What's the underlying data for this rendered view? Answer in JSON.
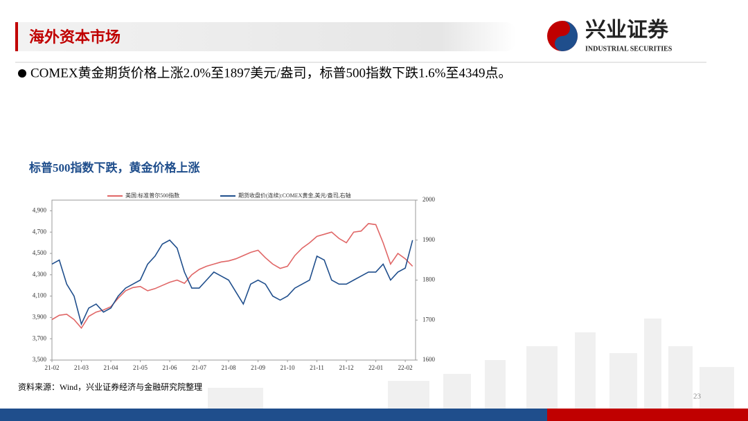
{
  "header": {
    "title": "海外资本市场",
    "logo_cn": "兴业证券",
    "logo_en": "INDUSTRIAL SECURITIES"
  },
  "bullet": "COMEX黄金期货价格上涨2.0%至1897美元/盎司，标普500指数下跌1.6%至4349点。",
  "source": "资料来源：Wind，兴业证券经济与金融研究院整理",
  "page_number": "23",
  "chart_data": {
    "type": "line",
    "title": "标普500指数下跌，黄金价格上涨",
    "x": [
      0,
      0.25,
      0.5,
      0.75,
      1,
      1.25,
      1.5,
      1.75,
      2,
      2.25,
      2.5,
      2.75,
      3,
      3.25,
      3.5,
      3.75,
      4,
      4.25,
      4.5,
      4.75,
      5,
      5.25,
      5.5,
      5.75,
      6,
      6.25,
      6.5,
      6.75,
      7,
      7.25,
      7.5,
      7.75,
      8,
      8.25,
      8.5,
      8.75,
      9,
      9.25,
      9.5,
      9.75,
      10,
      10.25,
      10.5,
      10.75,
      11,
      11.25,
      11.5,
      11.75,
      12,
      12.25
    ],
    "series": [
      {
        "name": "美国:标准普尔500指数",
        "color": "#e06666",
        "axis": "y",
        "values": [
          3880,
          3920,
          3930,
          3880,
          3800,
          3910,
          3950,
          3970,
          4000,
          4080,
          4150,
          4180,
          4190,
          4150,
          4170,
          4200,
          4230,
          4250,
          4220,
          4300,
          4350,
          4380,
          4400,
          4420,
          4430,
          4450,
          4480,
          4510,
          4530,
          4460,
          4400,
          4360,
          4380,
          4480,
          4550,
          4600,
          4660,
          4680,
          4700,
          4640,
          4600,
          4700,
          4710,
          4780,
          4770,
          4600,
          4400,
          4500,
          4450,
          4380
        ]
      },
      {
        "name": "期货收盘价(连续):COMEX黄金,美元/盎司,右轴",
        "color": "#1f4e8c",
        "axis": "y2",
        "values": [
          1840,
          1850,
          1790,
          1760,
          1690,
          1730,
          1740,
          1720,
          1730,
          1760,
          1780,
          1790,
          1800,
          1840,
          1860,
          1890,
          1900,
          1880,
          1820,
          1780,
          1780,
          1800,
          1820,
          1810,
          1800,
          1770,
          1740,
          1790,
          1800,
          1790,
          1760,
          1750,
          1760,
          1780,
          1790,
          1800,
          1860,
          1850,
          1800,
          1790,
          1790,
          1800,
          1810,
          1820,
          1820,
          1840,
          1800,
          1820,
          1830,
          1900
        ]
      }
    ],
    "xlim": [
      0,
      12.35
    ],
    "xticks": [
      {
        "value": 0,
        "label": "21-02"
      },
      {
        "value": 1,
        "label": "21-03"
      },
      {
        "value": 2,
        "label": "21-04"
      },
      {
        "value": 3,
        "label": "21-05"
      },
      {
        "value": 4,
        "label": "21-06"
      },
      {
        "value": 5,
        "label": "21-07"
      },
      {
        "value": 6,
        "label": "21-08"
      },
      {
        "value": 7,
        "label": "21-09"
      },
      {
        "value": 8,
        "label": "21-10"
      },
      {
        "value": 9,
        "label": "21-11"
      },
      {
        "value": 10,
        "label": "21-12"
      },
      {
        "value": 11,
        "label": "22-01"
      },
      {
        "value": 12,
        "label": "22-02"
      }
    ],
    "ylim": [
      3500,
      5000
    ],
    "yticks": [
      {
        "value": 3500,
        "label": "3,500"
      },
      {
        "value": 3700,
        "label": "3,700"
      },
      {
        "value": 3900,
        "label": "3,900"
      },
      {
        "value": 4100,
        "label": "4,100"
      },
      {
        "value": 4300,
        "label": "4,300"
      },
      {
        "value": 4500,
        "label": "4,500"
      },
      {
        "value": 4700,
        "label": "4,700"
      },
      {
        "value": 4900,
        "label": "4,900"
      }
    ],
    "y2lim": [
      1600,
      2000
    ],
    "y2ticks": [
      1600,
      1700,
      1800,
      1900,
      2000
    ],
    "grid": false,
    "legend": "top"
  }
}
